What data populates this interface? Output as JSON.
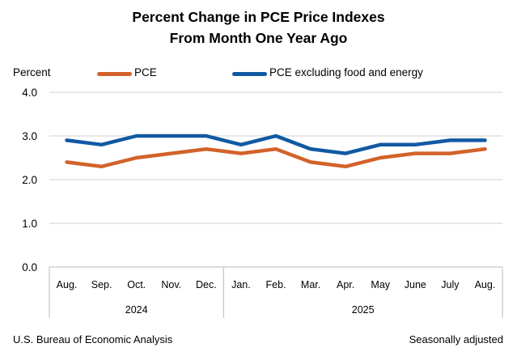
{
  "title": {
    "line1": "Percent Change in PCE Price Indexes",
    "line2": "From Month One Year Ago"
  },
  "axis_unit_label": "Percent",
  "legend": [
    {
      "label": "PCE",
      "color": "#D2622A"
    },
    {
      "label": "PCE excluding food and energy",
      "color": "#1159A3"
    }
  ],
  "chart_data": {
    "type": "line",
    "categories": [
      "Aug.",
      "Sep.",
      "Oct.",
      "Nov.",
      "Dec.",
      "Jan.",
      "Feb.",
      "Mar.",
      "Apr.",
      "May",
      "June",
      "July",
      "Aug."
    ],
    "year_groups": [
      {
        "label": "2024",
        "count": 5
      },
      {
        "label": "2025",
        "count": 8
      }
    ],
    "series": [
      {
        "name": "PCE",
        "color": "#D2622A",
        "values": [
          2.4,
          2.3,
          2.5,
          2.6,
          2.7,
          2.6,
          2.7,
          2.4,
          2.3,
          2.5,
          2.6,
          2.6,
          2.7
        ]
      },
      {
        "name": "PCE excluding food and energy",
        "color": "#1159A3",
        "values": [
          2.9,
          2.8,
          3.0,
          3.0,
          3.0,
          2.8,
          3.0,
          2.7,
          2.6,
          2.8,
          2.8,
          2.9,
          2.9
        ]
      }
    ],
    "ylabel": "Percent",
    "ylim": [
      0,
      4
    ],
    "yticks": [
      0,
      1,
      2,
      3,
      4
    ],
    "ytick_labels": [
      "0.0",
      "1.0",
      "2.0",
      "3.0",
      "4.0"
    ],
    "grid": true,
    "legend_position": "top"
  },
  "colors": {
    "gridline": "#D9D9D9",
    "axis_box": "#C8C8C8"
  },
  "footer": {
    "left": "U.S. Bureau of Economic Analysis",
    "right": "Seasonally adjusted"
  }
}
